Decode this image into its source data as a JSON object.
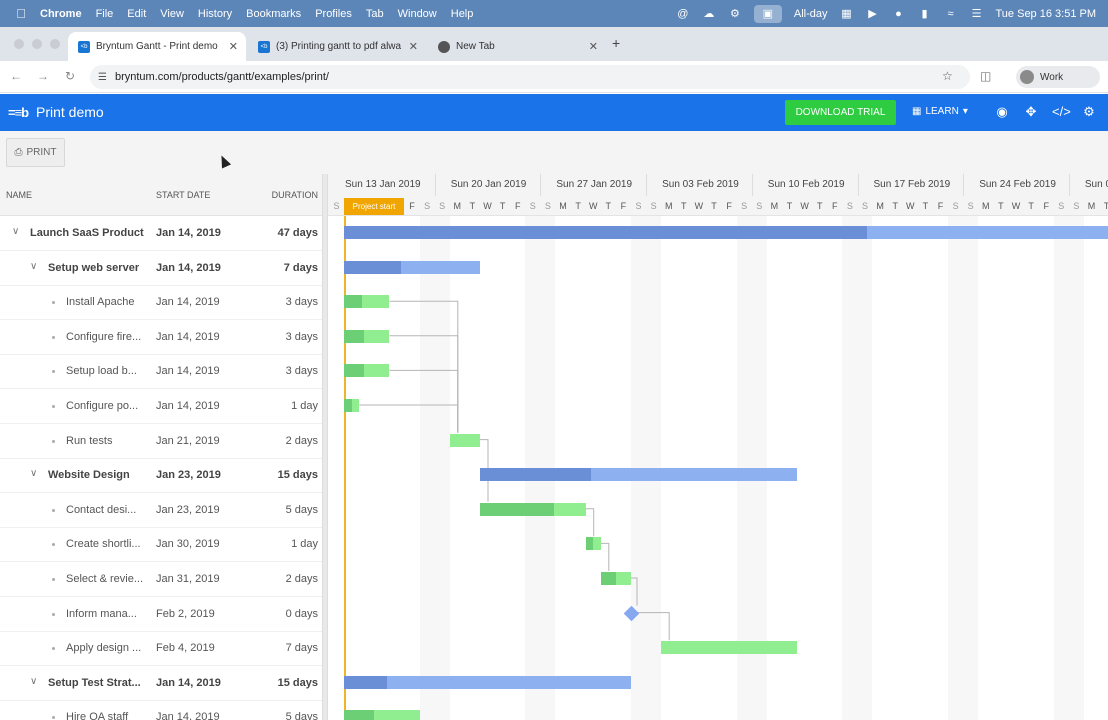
{
  "menubar": {
    "app": "Chrome",
    "items": [
      "File",
      "Edit",
      "View",
      "History",
      "Bookmarks",
      "Profiles",
      "Tab",
      "Window",
      "Help"
    ],
    "allday": "All-day",
    "clock": "Tue Sep 16  3:51 PM"
  },
  "tabs": [
    {
      "title": "Bryntum Gantt - Print demo",
      "active": true
    },
    {
      "title": "(3) Printing gantt to pdf alwa",
      "active": false
    },
    {
      "title": "New Tab",
      "active": false
    }
  ],
  "address": {
    "url": "bryntum.com/products/gantt/examples/print/",
    "profile": "Work"
  },
  "app": {
    "title": "Print demo",
    "download_label": "DOWNLOAD TRIAL",
    "learn_label": "LEARN",
    "print_label": "PRINT"
  },
  "grid": {
    "columns": {
      "name": "NAME",
      "start": "START DATE",
      "duration": "DURATION"
    },
    "rows": [
      {
        "name": "Launch SaaS Product",
        "start": "Jan 14, 2019",
        "duration": "47 days",
        "level": 0,
        "parent": true
      },
      {
        "name": "Setup web server",
        "start": "Jan 14, 2019",
        "duration": "7 days",
        "level": 1,
        "parent": true
      },
      {
        "name": "Install Apache",
        "start": "Jan 14, 2019",
        "duration": "3 days",
        "level": 2,
        "parent": false
      },
      {
        "name": "Configure fire...",
        "start": "Jan 14, 2019",
        "duration": "3 days",
        "level": 2,
        "parent": false
      },
      {
        "name": "Setup load b...",
        "start": "Jan 14, 2019",
        "duration": "3 days",
        "level": 2,
        "parent": false
      },
      {
        "name": "Configure po...",
        "start": "Jan 14, 2019",
        "duration": "1 day",
        "level": 2,
        "parent": false
      },
      {
        "name": "Run tests",
        "start": "Jan 21, 2019",
        "duration": "2 days",
        "level": 2,
        "parent": false
      },
      {
        "name": "Website Design",
        "start": "Jan 23, 2019",
        "duration": "15 days",
        "level": 1,
        "parent": true
      },
      {
        "name": "Contact desi...",
        "start": "Jan 23, 2019",
        "duration": "5 days",
        "level": 2,
        "parent": false
      },
      {
        "name": "Create shortli...",
        "start": "Jan 30, 2019",
        "duration": "1 day",
        "level": 2,
        "parent": false
      },
      {
        "name": "Select & revie...",
        "start": "Jan 31, 2019",
        "duration": "2 days",
        "level": 2,
        "parent": false
      },
      {
        "name": "Inform mana...",
        "start": "Feb 2, 2019",
        "duration": "0 days",
        "level": 2,
        "parent": false
      },
      {
        "name": "Apply design ...",
        "start": "Feb 4, 2019",
        "duration": "7 days",
        "level": 2,
        "parent": false
      },
      {
        "name": "Setup Test Strat...",
        "start": "Jan 14, 2019",
        "duration": "15 days",
        "level": 1,
        "parent": true
      },
      {
        "name": "Hire QA staff",
        "start": "Jan 14, 2019",
        "duration": "5 days",
        "level": 2,
        "parent": false
      }
    ]
  },
  "timeline": {
    "weeks": [
      "Sun 13 Jan 2019",
      "Sun 20 Jan 2019",
      "Sun 27 Jan 2019",
      "Sun 03 Feb 2019",
      "Sun 10 Feb 2019",
      "Sun 17 Feb 2019",
      "Sun 24 Feb 2019",
      "Sun 0"
    ],
    "day_letters": [
      "S",
      "M",
      "T",
      "W",
      "T",
      "F",
      "S"
    ],
    "project_start_label": "Project start",
    "bars": [
      {
        "row": 0,
        "start_day": 1,
        "days": 77,
        "progress": 0.45,
        "kind": "parent"
      },
      {
        "row": 1,
        "start_day": 1,
        "days": 9,
        "progress": 0.42,
        "kind": "parent"
      },
      {
        "row": 2,
        "start_day": 1,
        "days": 3,
        "progress": 0.4,
        "kind": "task"
      },
      {
        "row": 3,
        "start_day": 1,
        "days": 3,
        "progress": 0.45,
        "kind": "task"
      },
      {
        "row": 4,
        "start_day": 1,
        "days": 3,
        "progress": 0.45,
        "kind": "task"
      },
      {
        "row": 5,
        "start_day": 1,
        "days": 1,
        "progress": 0.5,
        "kind": "task"
      },
      {
        "row": 6,
        "start_day": 8,
        "days": 2,
        "progress": 0,
        "kind": "task"
      },
      {
        "row": 7,
        "start_day": 10,
        "days": 21,
        "progress": 0.35,
        "kind": "parent"
      },
      {
        "row": 8,
        "start_day": 10,
        "days": 7,
        "progress": 0.7,
        "kind": "task"
      },
      {
        "row": 9,
        "start_day": 17,
        "days": 1,
        "progress": 0.5,
        "kind": "task"
      },
      {
        "row": 10,
        "start_day": 18,
        "days": 2,
        "progress": 0.5,
        "kind": "task"
      },
      {
        "row": 11,
        "start_day": 20,
        "days": 0,
        "progress": 0,
        "kind": "milestone"
      },
      {
        "row": 12,
        "start_day": 22,
        "days": 9,
        "progress": 0,
        "kind": "task"
      },
      {
        "row": 13,
        "start_day": 1,
        "days": 19,
        "progress": 0.15,
        "kind": "parent"
      },
      {
        "row": 14,
        "start_day": 1,
        "days": 5,
        "progress": 0.4,
        "kind": "task"
      }
    ],
    "dependencies": [
      [
        2,
        6
      ],
      [
        3,
        6
      ],
      [
        4,
        6
      ],
      [
        5,
        6
      ],
      [
        6,
        8
      ],
      [
        8,
        9
      ],
      [
        9,
        10
      ],
      [
        10,
        11
      ],
      [
        11,
        12
      ]
    ]
  }
}
